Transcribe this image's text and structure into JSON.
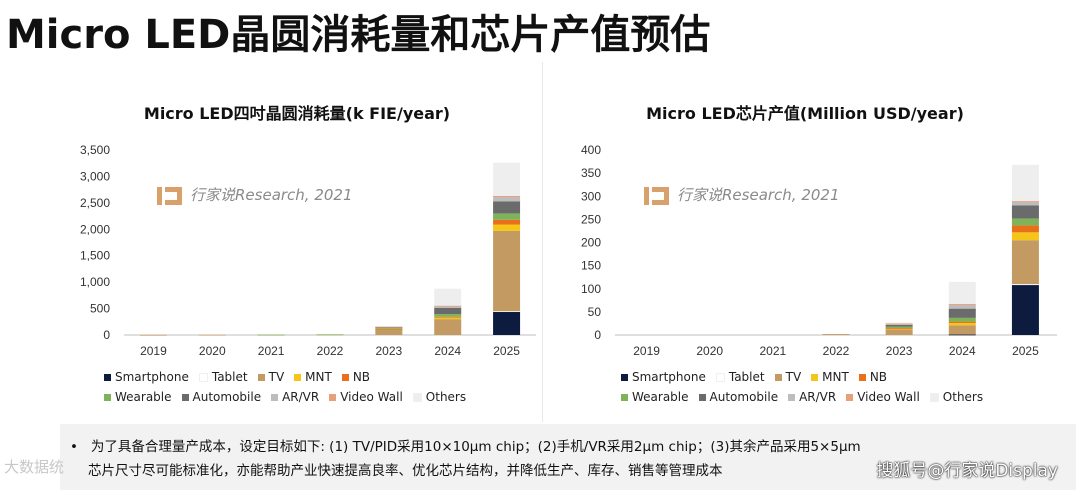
{
  "page_title": "Micro LED晶圆消耗量和芯片产值预估",
  "watermark_text": "行家说Research, 2021",
  "notes": {
    "bullet": "•",
    "line1": "为了具备合理量产成本，设定目标如下: (1) TV/PID采用10×10μm chip；(2)手机/VR采用2μm chip；(3)其余产品采用5×5μm",
    "line2": "芯片尺寸尽可能标准化，亦能帮助产业快速提高良率、优化芯片结构，并降低生产、库存、销售等管理成本"
  },
  "footer_left": "大数据统",
  "footer_right": "搜狐号@行家说Display",
  "colors": {
    "Smartphone": "#0d1b3e",
    "Tablet": "#ffffff",
    "TV": "#c49a63",
    "MNT": "#f5c518",
    "NB": "#e8701a",
    "Wearable": "#7fb35a",
    "Automobile": "#6b6b6b",
    "AR/VR": "#bdbdbd",
    "Video Wall": "#e8a07a",
    "Others": "#eeeeee"
  },
  "chart_data": [
    {
      "type": "bar",
      "stacked": true,
      "title": "Micro LED四吋晶圆消耗量(k FIE/year)",
      "categories": [
        "2019",
        "2020",
        "2021",
        "2022",
        "2023",
        "2024",
        "2025"
      ],
      "ylim": [
        0,
        3500
      ],
      "yticks": [
        "0",
        "500",
        "1,000",
        "1,500",
        "2,000",
        "2,500",
        "3,000",
        "3,500"
      ],
      "legend_rows": [
        [
          "Smartphone",
          "Tablet",
          "TV",
          "MNT",
          "NB"
        ],
        [
          "Wearable",
          "Automobile",
          "AR/VR",
          "Video Wall",
          "Others"
        ]
      ],
      "series": [
        {
          "name": "Smartphone",
          "values": [
            0,
            0,
            0,
            0,
            0,
            0,
            440
          ]
        },
        {
          "name": "Tablet",
          "values": [
            0,
            0,
            0,
            0,
            0,
            0,
            10
          ]
        },
        {
          "name": "TV",
          "values": [
            3,
            5,
            5,
            10,
            100,
            300,
            1520
          ]
        },
        {
          "name": "MNT",
          "values": [
            0,
            0,
            0,
            0,
            10,
            30,
            120
          ]
        },
        {
          "name": "NB",
          "values": [
            0,
            0,
            0,
            0,
            5,
            15,
            90
          ]
        },
        {
          "name": "Wearable",
          "values": [
            0,
            0,
            1,
            2,
            15,
            50,
            120
          ]
        },
        {
          "name": "Automobile",
          "values": [
            0,
            0,
            0,
            0,
            20,
            120,
            230
          ]
        },
        {
          "name": "AR/VR",
          "values": [
            0,
            0,
            0,
            0,
            5,
            30,
            80
          ]
        },
        {
          "name": "Video Wall",
          "values": [
            0,
            0,
            0,
            0,
            5,
            10,
            20
          ]
        },
        {
          "name": "Others",
          "values": [
            0,
            0,
            0,
            0,
            10,
            320,
            630
          ]
        }
      ]
    },
    {
      "type": "bar",
      "stacked": true,
      "title": "Micro LED芯片产值(Million USD/year)",
      "categories": [
        "2019",
        "2020",
        "2021",
        "2022",
        "2023",
        "2024",
        "2025"
      ],
      "ylim": [
        0,
        400
      ],
      "yticks": [
        "0",
        "50",
        "100",
        "150",
        "200",
        "250",
        "300",
        "350",
        "400"
      ],
      "legend_rows": [
        [
          "Smartphone",
          "Tablet",
          "TV",
          "MNT",
          "NB"
        ],
        [
          "Wearable",
          "Automobile",
          "AR/VR",
          "Video Wall",
          "Others"
        ]
      ],
      "series": [
        {
          "name": "Smartphone",
          "values": [
            0,
            0,
            0,
            0,
            0,
            1,
            108
          ]
        },
        {
          "name": "Tablet",
          "values": [
            0,
            0,
            0,
            0,
            0,
            0,
            2
          ]
        },
        {
          "name": "TV",
          "values": [
            0,
            0,
            0,
            2,
            12,
            20,
            95
          ]
        },
        {
          "name": "MNT",
          "values": [
            0,
            0,
            0,
            0,
            2,
            5,
            17
          ]
        },
        {
          "name": "NB",
          "values": [
            0,
            0,
            0,
            0,
            1,
            3,
            15
          ]
        },
        {
          "name": "Wearable",
          "values": [
            0,
            0,
            0,
            0,
            3,
            8,
            15
          ]
        },
        {
          "name": "Automobile",
          "values": [
            0,
            0,
            0,
            0,
            4,
            20,
            28
          ]
        },
        {
          "name": "AR/VR",
          "values": [
            0,
            0,
            0,
            0,
            2,
            8,
            8
          ]
        },
        {
          "name": "Video Wall",
          "values": [
            0,
            0,
            0,
            0,
            1,
            2,
            2
          ]
        },
        {
          "name": "Others",
          "values": [
            0,
            0,
            0,
            0,
            2,
            48,
            78
          ]
        }
      ]
    }
  ]
}
